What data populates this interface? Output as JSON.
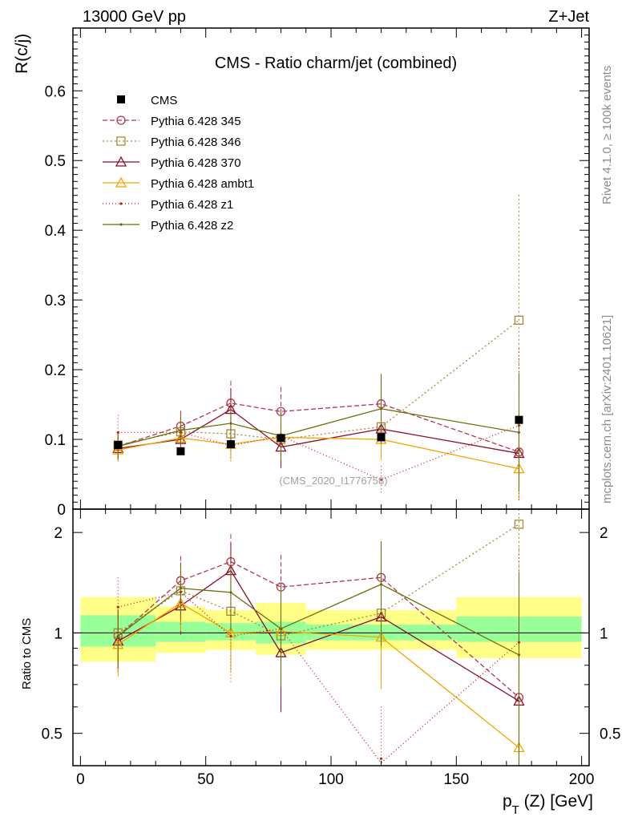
{
  "header": {
    "left": "13000 GeV pp",
    "right": "Z+Jet",
    "side_rivet": "Rivet 4.1.0, ≥ 100k events",
    "side_mcplots": "mcplots.cern.ch [arXiv:2401.10621]"
  },
  "chart_data": {
    "type": "line",
    "title": "CMS - Ratio charm/jet (combined)",
    "watermark": "(CMS_2020_I1776758)",
    "xlabel": "p_T (Z) [GeV]",
    "xlabel_main": "p",
    "xlabel_sub": "T",
    "xlabel_rest": " (Z) [GeV]",
    "ylabel": "R(c/j)",
    "ratio_ylabel": "Ratio to CMS",
    "xlim": [
      -3,
      203
    ],
    "ylim": [
      0,
      0.69
    ],
    "ratio_ylim": [
      0.4,
      2.35
    ],
    "x_ticks": [
      "0",
      "50",
      "100",
      "150",
      "200"
    ],
    "y_ticks": [
      "0",
      "0.1",
      "0.2",
      "0.3",
      "0.4",
      "0.5",
      "0.6"
    ],
    "ratio_ticks": [
      "0.5",
      "1",
      "2"
    ],
    "bins": [
      [
        0,
        30
      ],
      [
        30,
        50
      ],
      [
        50,
        70
      ],
      [
        70,
        90
      ],
      [
        90,
        150
      ],
      [
        150,
        200
      ]
    ],
    "x": [
      15,
      40,
      60,
      80,
      120,
      175
    ],
    "data": {
      "name": "CMS",
      "values": [
        0.092,
        0.083,
        0.093,
        0.102,
        0.103,
        0.128
      ],
      "errors": [
        0.004,
        0.004,
        0.004,
        0.005,
        0.005,
        0.005
      ]
    },
    "uncertainty_bands": {
      "inner": [
        [
          0.91,
          1.13
        ],
        [
          0.94,
          1.08
        ],
        [
          0.95,
          1.07
        ],
        [
          0.93,
          1.08
        ],
        [
          0.95,
          1.06
        ],
        [
          0.94,
          1.12
        ]
      ],
      "outer": [
        [
          0.82,
          1.28
        ],
        [
          0.87,
          1.2
        ],
        [
          0.89,
          1.17
        ],
        [
          0.86,
          1.23
        ],
        [
          0.89,
          1.17
        ],
        [
          0.84,
          1.28
        ]
      ]
    },
    "series": [
      {
        "name": "Pythia 6.428 345",
        "color": "#b3364f",
        "dash": "6,3",
        "marker": "circle",
        "values": [
          0.09,
          0.119,
          0.152,
          0.14,
          0.151,
          0.082
        ],
        "errors": [
          0.018,
          0.022,
          0.032,
          0.035,
          0.04,
          0.055
        ]
      },
      {
        "name": "Pythia 6.428 346",
        "color": "#a88736",
        "dash": "2,3",
        "marker": "square",
        "values": [
          0.092,
          0.111,
          0.108,
          0.1,
          0.118,
          0.271
        ],
        "errors": [
          0.018,
          0.02,
          0.025,
          0.03,
          0.04,
          0.18
        ]
      },
      {
        "name": "Pythia 6.428 370",
        "color": "#8b0d2a",
        "dash": "",
        "marker": "triangle",
        "values": [
          0.087,
          0.1,
          0.143,
          0.089,
          0.115,
          0.08
        ],
        "errors": [
          0.017,
          0.018,
          0.03,
          0.03,
          0.04,
          0.055
        ]
      },
      {
        "name": "Pythia 6.428 ambt1",
        "color": "#f5a300",
        "dash": "",
        "marker": "triangle",
        "values": [
          0.085,
          0.102,
          0.093,
          0.103,
          0.1,
          0.058
        ],
        "errors": [
          0.017,
          0.018,
          0.022,
          0.03,
          0.03,
          0.045
        ]
      },
      {
        "name": "Pythia 6.428 z1",
        "color": "#cc1a0a",
        "dash": "1,3",
        "marker": "dot",
        "values": [
          0.11,
          0.11,
          0.091,
          0.105,
          0.042,
          0.12
        ],
        "errors": [
          0.025,
          0.022,
          0.025,
          0.035,
          0.02,
          0.11
        ]
      },
      {
        "name": "Pythia 6.428 z2",
        "color": "#6b6e0a",
        "dash": "",
        "marker": "dot",
        "values": [
          0.09,
          0.113,
          0.123,
          0.105,
          0.144,
          0.11
        ],
        "errors": [
          0.018,
          0.022,
          0.028,
          0.035,
          0.05,
          0.085
        ]
      }
    ]
  }
}
